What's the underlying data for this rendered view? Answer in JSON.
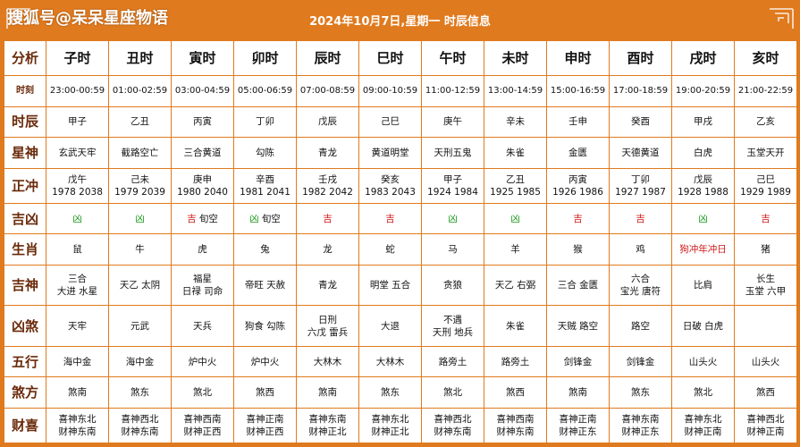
{
  "watermark": "搜狐号@呆呆星座物语",
  "title": "2024年10月7日,星期一 时辰信息",
  "colors": {
    "accent": "#E07A1E",
    "auspicious": "#1a9a1a",
    "inauspicious": "#d01818"
  },
  "corner_label": "分析",
  "columns": [
    "子时",
    "丑时",
    "寅时",
    "卯时",
    "辰时",
    "巳时",
    "午时",
    "未时",
    "申时",
    "酉时",
    "戌时",
    "亥时"
  ],
  "rows": [
    {
      "label": "时刻",
      "cells": [
        "23:00-00:59",
        "01:00-02:59",
        "03:00-04:59",
        "05:00-06:59",
        "07:00-08:59",
        "09:00-10:59",
        "11:00-12:59",
        "13:00-14:59",
        "15:00-16:59",
        "17:00-18:59",
        "19:00-20:59",
        "21:00-22:59"
      ]
    },
    {
      "label": "时辰",
      "cells": [
        "甲子",
        "乙丑",
        "丙寅",
        "丁卯",
        "戊辰",
        "己巳",
        "庚午",
        "辛未",
        "壬申",
        "癸酉",
        "甲戌",
        "乙亥"
      ]
    },
    {
      "label": "星神",
      "cells": [
        "玄武天牢",
        "截路空亡",
        "三合黄道",
        "勾陈",
        "青龙",
        "黄道明堂",
        "天刑五鬼",
        "朱雀",
        "金匮",
        "天德黄道",
        "白虎",
        "玉堂天开"
      ]
    },
    {
      "label": "正冲",
      "cells": [
        [
          "戊午",
          "1978 2038"
        ],
        [
          "己未",
          "1979 2039"
        ],
        [
          "庚申",
          "1980 2040"
        ],
        [
          "辛酉",
          "1981 2041"
        ],
        [
          "壬戌",
          "1982 2042"
        ],
        [
          "癸亥",
          "1983 2043"
        ],
        [
          "甲子",
          "1924 1984"
        ],
        [
          "乙丑",
          "1925 1985"
        ],
        [
          "丙寅",
          "1926 1986"
        ],
        [
          "丁卯",
          "1927 1987"
        ],
        [
          "戊辰",
          "1928 1988"
        ],
        [
          "己巳",
          "1929 1989"
        ]
      ]
    },
    {
      "label": "吉凶",
      "cells": [
        {
          "a": "凶",
          "b": "",
          "c": "green"
        },
        {
          "a": "凶",
          "b": "",
          "c": "green"
        },
        {
          "a": "吉",
          "b": "旬空",
          "c": "red"
        },
        {
          "a": "凶",
          "b": "旬空",
          "c": "green"
        },
        {
          "a": "吉",
          "b": "",
          "c": "red"
        },
        {
          "a": "吉",
          "b": "",
          "c": "red"
        },
        {
          "a": "凶",
          "b": "",
          "c": "green"
        },
        {
          "a": "凶",
          "b": "",
          "c": "green"
        },
        {
          "a": "吉",
          "b": "",
          "c": "red"
        },
        {
          "a": "吉",
          "b": "",
          "c": "red"
        },
        {
          "a": "凶",
          "b": "",
          "c": "green"
        },
        {
          "a": "吉",
          "b": "",
          "c": "red"
        }
      ]
    },
    {
      "label": "生肖",
      "cells": [
        "鼠",
        "牛",
        "虎",
        "兔",
        "龙",
        "蛇",
        "马",
        "羊",
        "猴",
        "鸡",
        {
          "a": "狗",
          "b": "冲年冲日"
        },
        "猪"
      ]
    },
    {
      "label": "吉神",
      "cells": [
        [
          "三合",
          "大进 水星"
        ],
        [
          "天乙 太阴"
        ],
        [
          "福星",
          "日禄 司命"
        ],
        [
          "帝旺 天赦"
        ],
        [
          "青龙"
        ],
        [
          "明堂 五合"
        ],
        [
          "贪狼"
        ],
        [
          "天乙 右弼"
        ],
        [
          "三合 金匮"
        ],
        [
          "六合",
          "宝光 唐符"
        ],
        [
          "比肩"
        ],
        [
          "长生",
          "玉堂 六甲"
        ]
      ]
    },
    {
      "label": "凶煞",
      "cells": [
        [
          "天牢"
        ],
        [
          "元武"
        ],
        [
          "天兵"
        ],
        [
          "狗食 勾陈"
        ],
        [
          "日刑",
          "六戊 雷兵"
        ],
        [
          "大退"
        ],
        [
          "不遇",
          "天刑 地兵"
        ],
        [
          "朱雀"
        ],
        [
          "天贼 路空"
        ],
        [
          "路空"
        ],
        [
          "日破 白虎"
        ],
        [
          ""
        ]
      ]
    },
    {
      "label": "五行",
      "cells": [
        "海中金",
        "海中金",
        "炉中火",
        "炉中火",
        "大林木",
        "大林木",
        "路旁土",
        "路旁土",
        "剑锋金",
        "剑锋金",
        "山头火",
        "山头火"
      ]
    },
    {
      "label": "煞方",
      "cells": [
        "煞南",
        "煞东",
        "煞北",
        "煞西",
        "煞南",
        "煞东",
        "煞北",
        "煞西",
        "煞南",
        "煞东",
        "煞北",
        "煞西"
      ]
    },
    {
      "label": "财喜",
      "cells": [
        [
          "喜神东北",
          "财神东南"
        ],
        [
          "喜神西北",
          "财神东南"
        ],
        [
          "喜神西南",
          "财神正西"
        ],
        [
          "喜神正南",
          "财神正西"
        ],
        [
          "喜神东南",
          "财神正北"
        ],
        [
          "喜神东北",
          "财神正北"
        ],
        [
          "喜神西北",
          "财神东南"
        ],
        [
          "喜神西南",
          "财神东南"
        ],
        [
          "喜神正南",
          "财神正东"
        ],
        [
          "喜神东南",
          "财神正东"
        ],
        [
          "喜神东北",
          "财神正南"
        ],
        [
          "喜神西北",
          "财神正南"
        ]
      ]
    }
  ]
}
